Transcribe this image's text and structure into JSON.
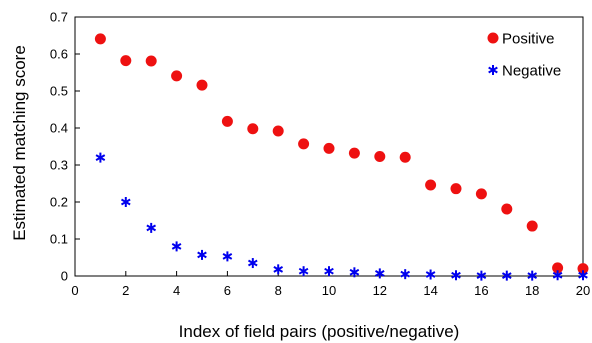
{
  "chart_data": {
    "type": "scatter",
    "title": "",
    "xlabel": "Index of field pairs (positive/negative)",
    "ylabel": "Estimated matching score",
    "xlim": [
      0,
      20
    ],
    "ylim": [
      0,
      0.7
    ],
    "xticks": [
      0,
      2,
      4,
      6,
      8,
      10,
      12,
      14,
      16,
      18,
      20
    ],
    "yticks": [
      0,
      0.1,
      0.2,
      0.3,
      0.4,
      0.5,
      0.6,
      0.7
    ],
    "grid": false,
    "legend_position": "top-right",
    "series": [
      {
        "name": "Positive",
        "marker": "circle",
        "color": "#ee1111",
        "x": [
          1,
          2,
          3,
          4,
          5,
          6,
          7,
          8,
          9,
          10,
          11,
          12,
          13,
          14,
          15,
          16,
          17,
          18,
          19,
          20
        ],
        "y": [
          0.641,
          0.582,
          0.581,
          0.541,
          0.516,
          0.418,
          0.398,
          0.392,
          0.357,
          0.345,
          0.332,
          0.323,
          0.321,
          0.246,
          0.236,
          0.222,
          0.181,
          0.135,
          0.022,
          0.02
        ]
      },
      {
        "name": "Negative",
        "marker": "asterisk",
        "color": "#0000ee",
        "x": [
          1,
          2,
          3,
          4,
          5,
          6,
          7,
          8,
          9,
          10,
          11,
          12,
          13,
          14,
          15,
          16,
          17,
          18,
          19,
          20
        ],
        "y": [
          0.32,
          0.2,
          0.13,
          0.08,
          0.057,
          0.053,
          0.035,
          0.018,
          0.013,
          0.013,
          0.01,
          0.007,
          0.005,
          0.004,
          0.002,
          0.001,
          0.001,
          0.001,
          0.002,
          0.002
        ]
      }
    ]
  }
}
